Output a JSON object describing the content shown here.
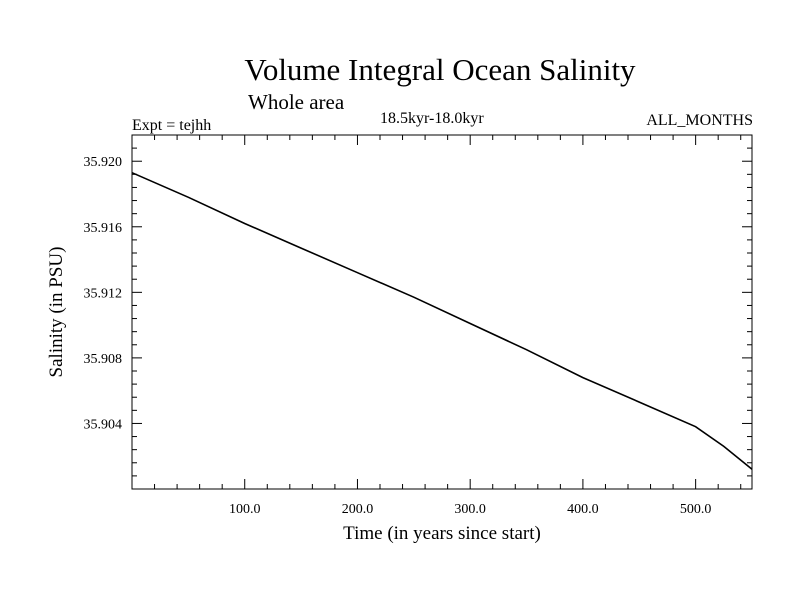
{
  "chart_data": {
    "type": "line",
    "title": "Volume Integral Ocean Salinity",
    "subtitle": "Whole area",
    "experiment_label": "Expt = tejhh",
    "period_label": "18.5kyr-18.0kyr",
    "season_label": "ALL_MONTHS",
    "xlabel": "Time (in years since start)",
    "ylabel": "Salinity (in PSU)",
    "xlim": [
      0,
      550
    ],
    "ylim": [
      35.9,
      35.9216
    ],
    "x_ticks": [
      100,
      200,
      300,
      400,
      500
    ],
    "x_tick_labels": [
      "100.0",
      "200.0",
      "300.0",
      "400.0",
      "500.0"
    ],
    "y_ticks": [
      35.904,
      35.908,
      35.912,
      35.916,
      35.92
    ],
    "y_tick_labels": [
      "35.904",
      "35.908",
      "35.912",
      "35.916",
      "35.920"
    ],
    "series": [
      {
        "name": "Salinity",
        "x": [
          0,
          50,
          100,
          150,
          200,
          250,
          300,
          350,
          400,
          450,
          500,
          525,
          550
        ],
        "values": [
          35.9193,
          35.9178,
          35.9162,
          35.9147,
          35.9132,
          35.9117,
          35.9101,
          35.9085,
          35.9068,
          35.9053,
          35.9038,
          35.9026,
          35.9012
        ]
      }
    ]
  }
}
